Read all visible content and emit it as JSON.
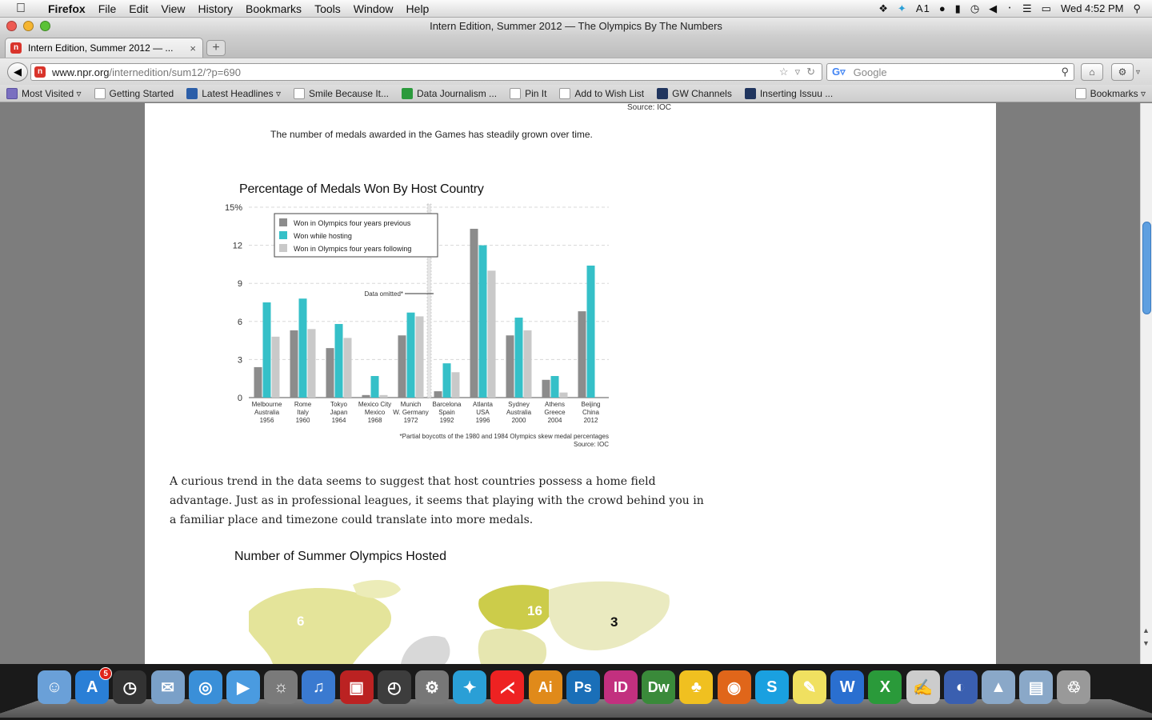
{
  "menubar": {
    "app": "Firefox",
    "items": [
      "File",
      "Edit",
      "View",
      "History",
      "Bookmarks",
      "Tools",
      "Window",
      "Help"
    ],
    "status_count": "1",
    "clock": "Wed 4:52 PM"
  },
  "window": {
    "title": "Intern Edition, Summer 2012 — The Olympics By The Numbers",
    "tab_label": "Intern Edition, Summer 2012 — ...",
    "new_tab": "+"
  },
  "navbar": {
    "url_host": "www.npr.org",
    "url_path": "/internedition/sum12/?p=690",
    "search_placeholder": "Google"
  },
  "bookmarks": {
    "items": [
      "Most Visited",
      "Getting Started",
      "Latest Headlines",
      "Smile Because It...",
      "Data Journalism ...",
      "Pin It",
      "Add to Wish List",
      "GW Channels",
      "Inserting Issuu ..."
    ],
    "right": "Bookmarks"
  },
  "page": {
    "source_top": "Source: IOC",
    "caption": "The number of medals awarded in the Games has steadily grown over time.",
    "paragraph": "A curious trend in the data seems to suggest that host countries possess a home field advantage. Just as in professional leagues, it seems that playing with the crowd behind you in a familiar place and timezone could translate into more medals.",
    "map_title": "Number of Summer Olympics Hosted"
  },
  "chart_data": {
    "type": "bar",
    "title": "Percentage of Medals Won By Host Country",
    "yticks": [
      "15%",
      "12",
      "9",
      "6",
      "3",
      "0"
    ],
    "ylim": [
      0,
      15
    ],
    "categories": [
      [
        "Melbourne",
        "Australia",
        "1956"
      ],
      [
        "Rome",
        "Italy",
        "1960"
      ],
      [
        "Tokyo",
        "Japan",
        "1964"
      ],
      [
        "Mexico City",
        "Mexico",
        "1968"
      ],
      [
        "Munich",
        "W. Germany",
        "1972"
      ],
      [
        "Barcelona",
        "Spain",
        "1992"
      ],
      [
        "Atlanta",
        "USA",
        "1996"
      ],
      [
        "Sydney",
        "Australia",
        "2000"
      ],
      [
        "Athens",
        "Greece",
        "2004"
      ],
      [
        "Beijing",
        "China",
        "2012"
      ]
    ],
    "series": [
      {
        "name": "Won in Olympics four years previous",
        "color": "#8c8c8c",
        "values": [
          2.4,
          5.3,
          3.9,
          0.2,
          4.9,
          0.5,
          13.3,
          4.9,
          1.4,
          6.8
        ]
      },
      {
        "name": "Won while hosting",
        "color": "#35c0c8",
        "values": [
          7.5,
          7.8,
          5.8,
          1.7,
          6.7,
          2.7,
          12.0,
          6.3,
          1.7,
          10.4
        ]
      },
      {
        "name": "Won in Olympics four years following",
        "color": "#c9c9c9",
        "values": [
          4.8,
          5.4,
          4.7,
          0.2,
          6.4,
          2.0,
          10.0,
          5.3,
          0.4,
          null
        ]
      }
    ],
    "annotation": "Data omitted*",
    "footnote": "*Partial boycotts of the 1980 and 1984 Olympics skew medal percentages",
    "source": "Source: IOC",
    "grid": true,
    "legend": "top-left"
  },
  "map_data": {
    "labels": [
      {
        "region": "north-america",
        "value": "6"
      },
      {
        "region": "europe",
        "value": "16"
      },
      {
        "region": "asia",
        "value": "3"
      }
    ]
  },
  "dock": {
    "appstore_badge": "5",
    "apps": [
      "Finder",
      "App Store",
      "Dashboard",
      "Mail",
      "Safari",
      "FaceTime",
      "iPhoto",
      "iTunes",
      "Photo Booth",
      "Time Machine",
      "System Preferences",
      "Twitter",
      "Acrobat",
      "Ai",
      "Ps",
      "ID",
      "Dw",
      "Cyberduck",
      "Firefox",
      "Skype",
      "Stickies",
      "W",
      "X",
      "TextEdit",
      "Flash",
      "Applications",
      "Documents",
      "Trash"
    ]
  },
  "colors": {
    "accent": "#35c0c8",
    "npr_red": "#d9342b"
  }
}
